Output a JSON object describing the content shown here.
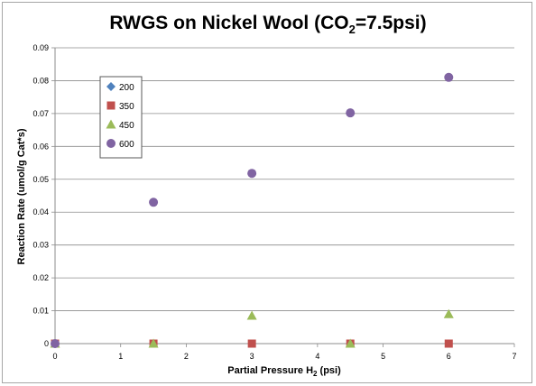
{
  "chart_data": {
    "type": "scatter",
    "title_prefix": "RWGS on Nickel Wool (CO",
    "title_sub": "2",
    "title_suffix": "=7.5psi)",
    "xlabel_prefix": "Partial Pressure H",
    "xlabel_sub": "2",
    "xlabel_suffix": " (psi)",
    "ylabel": "Reaction Rate (umol/g Cat*s)",
    "xlim": [
      0,
      7
    ],
    "ylim": [
      0,
      0.09
    ],
    "x_ticks": [
      0,
      1,
      2,
      3,
      4,
      5,
      6,
      7
    ],
    "x_tick_labels": [
      "0",
      "1",
      "2",
      "3",
      "4",
      "5",
      "6",
      "7"
    ],
    "y_ticks": [
      0,
      0.01,
      0.02,
      0.03,
      0.04,
      0.05,
      0.06,
      0.07,
      0.08,
      0.09
    ],
    "y_tick_labels": [
      "0",
      "0.01",
      "0.02",
      "0.03",
      "0.04",
      "0.05",
      "0.06",
      "0.07",
      "0.08",
      "0.09"
    ],
    "grid": "horizontal",
    "legend_position": "left",
    "series": [
      {
        "name": "200",
        "marker": "diamond",
        "color": "#4f81bd",
        "points": [
          [
            0,
            0
          ]
        ]
      },
      {
        "name": "350",
        "marker": "square",
        "color": "#c0504d",
        "points": [
          [
            0,
            0
          ],
          [
            1.5,
            0
          ],
          [
            3,
            0
          ],
          [
            4.5,
            0
          ],
          [
            6,
            0
          ]
        ]
      },
      {
        "name": "450",
        "marker": "triangle",
        "color": "#9bbb59",
        "points": [
          [
            0,
            0
          ],
          [
            1.5,
            0
          ],
          [
            3,
            0.0085
          ],
          [
            4.5,
            0
          ],
          [
            6,
            0.009
          ]
        ]
      },
      {
        "name": "600",
        "marker": "circle",
        "color": "#8064a2",
        "points": [
          [
            0,
            0
          ],
          [
            1.5,
            0.043
          ],
          [
            3,
            0.0518
          ],
          [
            4.5,
            0.0702
          ],
          [
            6,
            0.081
          ]
        ]
      }
    ]
  }
}
